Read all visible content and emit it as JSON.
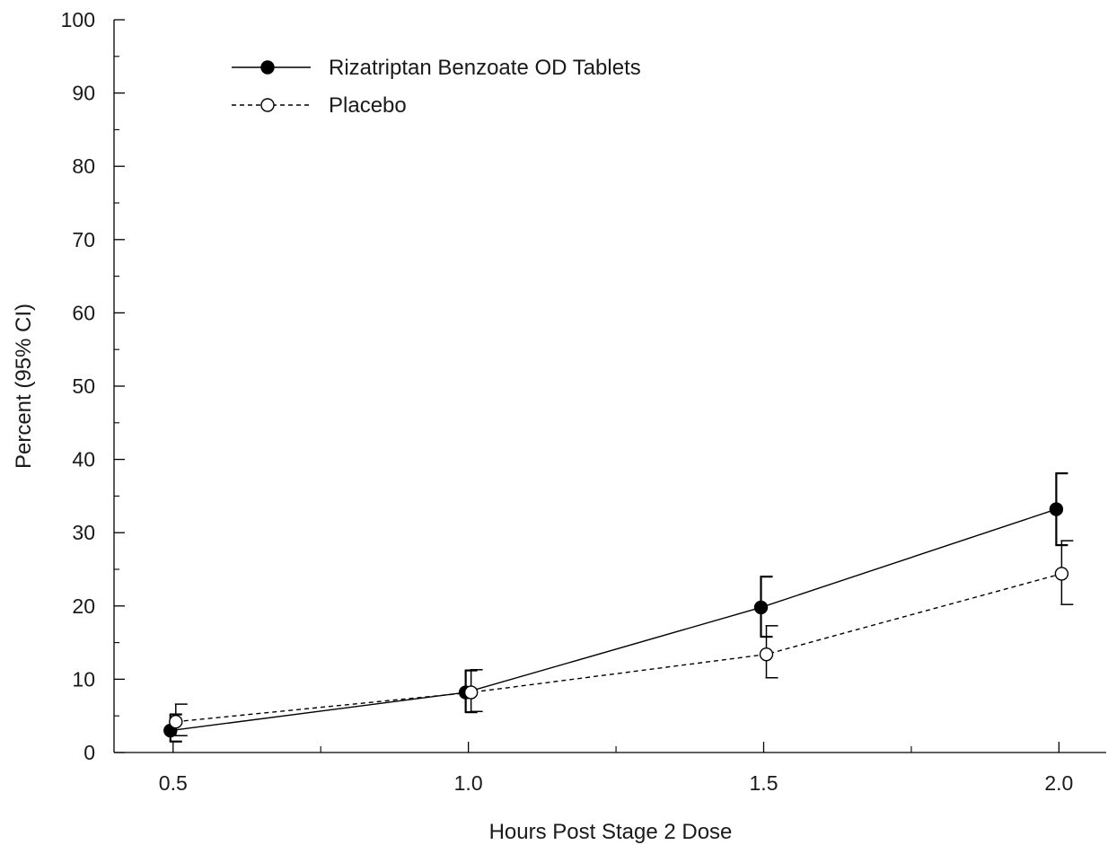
{
  "chart_data": {
    "type": "line",
    "title": "",
    "xlabel": "Hours Post Stage 2 Dose",
    "ylabel": "Percent (95% CI)",
    "xlim": [
      0.4,
      2.08
    ],
    "ylim": [
      0,
      100
    ],
    "x_ticks": [
      0.5,
      1.0,
      1.5,
      2.0
    ],
    "x_tick_labels": [
      "0.5",
      "1.0",
      "1.5",
      "2.0"
    ],
    "x_minor_ticks": [
      0.75,
      1.25,
      1.75
    ],
    "y_ticks": [
      0,
      10,
      20,
      30,
      40,
      50,
      60,
      70,
      80,
      90,
      100
    ],
    "y_tick_labels": [
      "0",
      "10",
      "20",
      "30",
      "40",
      "50",
      "60",
      "70",
      "80",
      "90",
      "100"
    ],
    "grid": false,
    "legend_position": "top-left",
    "series": [
      {
        "name": "Rizatriptan Benzoate OD Tablets",
        "marker": "filled-circle",
        "line": "solid",
        "color": "#000000",
        "x": [
          0.5,
          1.0,
          1.5,
          2.0
        ],
        "y": [
          3.0,
          8.2,
          19.8,
          33.2
        ],
        "ci_low": [
          1.5,
          5.5,
          15.8,
          28.3
        ],
        "ci_high": [
          5.2,
          11.2,
          24.0,
          38.1
        ]
      },
      {
        "name": "Placebo",
        "marker": "open-circle",
        "line": "dashed",
        "color": "#000000",
        "x": [
          0.5,
          1.0,
          1.5,
          2.0
        ],
        "y": [
          4.2,
          8.2,
          13.4,
          24.4
        ],
        "ci_low": [
          2.3,
          5.6,
          10.2,
          20.2
        ],
        "ci_high": [
          6.6,
          11.3,
          17.3,
          28.9
        ]
      }
    ]
  }
}
